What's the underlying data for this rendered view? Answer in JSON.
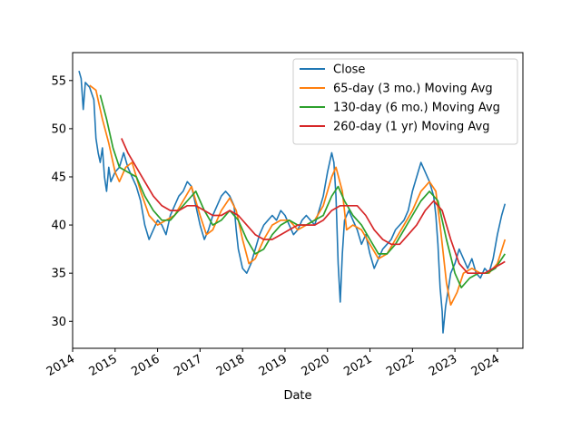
{
  "chart_data": {
    "type": "line",
    "title": "",
    "xlabel": "Date",
    "ylabel": "",
    "xlim": [
      2014.0,
      2024.6
    ],
    "ylim": [
      27.2,
      57.9
    ],
    "x_ticks": [
      2014,
      2015,
      2016,
      2017,
      2018,
      2019,
      2020,
      2021,
      2022,
      2023,
      2024
    ],
    "x_tick_labels": [
      "2014",
      "2015",
      "2016",
      "2017",
      "2018",
      "2019",
      "2020",
      "2021",
      "2022",
      "2023",
      "2024"
    ],
    "y_ticks": [
      30,
      35,
      40,
      45,
      50,
      55
    ],
    "y_tick_labels": [
      "30",
      "35",
      "40",
      "45",
      "50",
      "55"
    ],
    "grid": false,
    "legend_position": "upper-right",
    "series": [
      {
        "name": "Close",
        "color": "#1f77b4",
        "points": [
          [
            2014.15,
            56.0
          ],
          [
            2014.2,
            55.2
          ],
          [
            2014.25,
            52.0
          ],
          [
            2014.3,
            54.8
          ],
          [
            2014.4,
            54.3
          ],
          [
            2014.5,
            53.0
          ],
          [
            2014.55,
            49.0
          ],
          [
            2014.6,
            47.5
          ],
          [
            2014.65,
            46.5
          ],
          [
            2014.7,
            48.0
          ],
          [
            2014.75,
            45.0
          ],
          [
            2014.8,
            43.5
          ],
          [
            2014.85,
            46.0
          ],
          [
            2014.9,
            44.5
          ],
          [
            2015.0,
            45.5
          ],
          [
            2015.1,
            46.0
          ],
          [
            2015.2,
            47.5
          ],
          [
            2015.3,
            46.0
          ],
          [
            2015.4,
            45.0
          ],
          [
            2015.5,
            44.0
          ],
          [
            2015.6,
            42.5
          ],
          [
            2015.7,
            40.0
          ],
          [
            2015.8,
            38.5
          ],
          [
            2015.9,
            39.5
          ],
          [
            2016.0,
            40.5
          ],
          [
            2016.1,
            40.0
          ],
          [
            2016.2,
            39.0
          ],
          [
            2016.3,
            41.0
          ],
          [
            2016.4,
            42.0
          ],
          [
            2016.5,
            43.0
          ],
          [
            2016.6,
            43.5
          ],
          [
            2016.7,
            44.5
          ],
          [
            2016.8,
            44.0
          ],
          [
            2016.9,
            42.0
          ],
          [
            2017.0,
            40.0
          ],
          [
            2017.1,
            38.5
          ],
          [
            2017.2,
            39.5
          ],
          [
            2017.3,
            41.0
          ],
          [
            2017.4,
            42.0
          ],
          [
            2017.5,
            43.0
          ],
          [
            2017.6,
            43.5
          ],
          [
            2017.7,
            43.0
          ],
          [
            2017.8,
            42.0
          ],
          [
            2017.85,
            39.5
          ],
          [
            2017.9,
            37.5
          ],
          [
            2018.0,
            35.5
          ],
          [
            2018.1,
            35.0
          ],
          [
            2018.2,
            36.0
          ],
          [
            2018.3,
            37.5
          ],
          [
            2018.4,
            39.0
          ],
          [
            2018.5,
            40.0
          ],
          [
            2018.6,
            40.5
          ],
          [
            2018.7,
            41.0
          ],
          [
            2018.8,
            40.5
          ],
          [
            2018.9,
            41.5
          ],
          [
            2019.0,
            41.0
          ],
          [
            2019.1,
            40.0
          ],
          [
            2019.2,
            39.0
          ],
          [
            2019.3,
            39.5
          ],
          [
            2019.4,
            40.5
          ],
          [
            2019.5,
            41.0
          ],
          [
            2019.6,
            40.5
          ],
          [
            2019.7,
            40.0
          ],
          [
            2019.8,
            41.5
          ],
          [
            2019.9,
            43.0
          ],
          [
            2020.0,
            45.5
          ],
          [
            2020.1,
            47.5
          ],
          [
            2020.15,
            46.5
          ],
          [
            2020.2,
            43.0
          ],
          [
            2020.25,
            36.0
          ],
          [
            2020.3,
            32.0
          ],
          [
            2020.35,
            37.0
          ],
          [
            2020.4,
            40.5
          ],
          [
            2020.5,
            41.5
          ],
          [
            2020.6,
            40.5
          ],
          [
            2020.7,
            39.5
          ],
          [
            2020.8,
            38.0
          ],
          [
            2020.9,
            39.0
          ],
          [
            2021.0,
            37.0
          ],
          [
            2021.1,
            35.5
          ],
          [
            2021.2,
            36.5
          ],
          [
            2021.3,
            37.5
          ],
          [
            2021.4,
            38.0
          ],
          [
            2021.5,
            38.5
          ],
          [
            2021.6,
            39.5
          ],
          [
            2021.7,
            40.0
          ],
          [
            2021.8,
            40.5
          ],
          [
            2021.9,
            41.5
          ],
          [
            2022.0,
            43.5
          ],
          [
            2022.1,
            45.0
          ],
          [
            2022.2,
            46.5
          ],
          [
            2022.3,
            45.5
          ],
          [
            2022.4,
            44.5
          ],
          [
            2022.5,
            43.0
          ],
          [
            2022.55,
            41.0
          ],
          [
            2022.6,
            38.0
          ],
          [
            2022.65,
            33.5
          ],
          [
            2022.7,
            31.0
          ],
          [
            2022.72,
            28.8
          ],
          [
            2022.78,
            31.5
          ],
          [
            2022.85,
            33.5
          ],
          [
            2022.9,
            35.0
          ],
          [
            2023.0,
            36.0
          ],
          [
            2023.1,
            37.5
          ],
          [
            2023.2,
            36.5
          ],
          [
            2023.3,
            35.5
          ],
          [
            2023.4,
            36.5
          ],
          [
            2023.5,
            35.0
          ],
          [
            2023.6,
            34.5
          ],
          [
            2023.7,
            35.5
          ],
          [
            2023.8,
            35.0
          ],
          [
            2023.9,
            36.5
          ],
          [
            2024.0,
            39.0
          ],
          [
            2024.1,
            41.0
          ],
          [
            2024.18,
            42.2
          ]
        ]
      },
      {
        "name": "65-day (3 mo.) Moving Avg",
        "color": "#ff7f0e",
        "points": [
          [
            2014.4,
            54.5
          ],
          [
            2014.55,
            54.0
          ],
          [
            2014.7,
            51.0
          ],
          [
            2014.85,
            48.5
          ],
          [
            2015.0,
            45.5
          ],
          [
            2015.1,
            44.5
          ],
          [
            2015.25,
            46.0
          ],
          [
            2015.4,
            46.5
          ],
          [
            2015.6,
            43.5
          ],
          [
            2015.8,
            41.0
          ],
          [
            2016.0,
            40.0
          ],
          [
            2016.2,
            40.5
          ],
          [
            2016.4,
            41.0
          ],
          [
            2016.6,
            42.5
          ],
          [
            2016.8,
            44.0
          ],
          [
            2017.0,
            41.0
          ],
          [
            2017.15,
            39.0
          ],
          [
            2017.3,
            39.5
          ],
          [
            2017.5,
            41.5
          ],
          [
            2017.7,
            42.8
          ],
          [
            2017.85,
            41.5
          ],
          [
            2018.0,
            38.5
          ],
          [
            2018.15,
            36.0
          ],
          [
            2018.3,
            36.5
          ],
          [
            2018.5,
            38.5
          ],
          [
            2018.7,
            40.0
          ],
          [
            2018.9,
            40.5
          ],
          [
            2019.1,
            40.5
          ],
          [
            2019.3,
            39.5
          ],
          [
            2019.5,
            40.0
          ],
          [
            2019.7,
            40.5
          ],
          [
            2019.9,
            42.0
          ],
          [
            2020.1,
            45.0
          ],
          [
            2020.2,
            46.0
          ],
          [
            2020.35,
            43.5
          ],
          [
            2020.45,
            39.5
          ],
          [
            2020.6,
            40.0
          ],
          [
            2020.8,
            39.5
          ],
          [
            2021.0,
            38.0
          ],
          [
            2021.2,
            36.5
          ],
          [
            2021.4,
            37.0
          ],
          [
            2021.6,
            38.5
          ],
          [
            2021.8,
            40.0
          ],
          [
            2022.0,
            41.5
          ],
          [
            2022.2,
            43.5
          ],
          [
            2022.4,
            44.5
          ],
          [
            2022.55,
            43.5
          ],
          [
            2022.65,
            40.0
          ],
          [
            2022.8,
            34.0
          ],
          [
            2022.9,
            31.7
          ],
          [
            2023.05,
            33.0
          ],
          [
            2023.2,
            35.0
          ],
          [
            2023.4,
            35.5
          ],
          [
            2023.6,
            35.0
          ],
          [
            2023.8,
            35.0
          ],
          [
            2024.0,
            36.0
          ],
          [
            2024.18,
            38.5
          ]
        ]
      },
      {
        "name": "130-day (6 mo.) Moving Avg",
        "color": "#2ca02c",
        "points": [
          [
            2014.65,
            53.5
          ],
          [
            2014.8,
            51.0
          ],
          [
            2014.95,
            48.0
          ],
          [
            2015.1,
            46.0
          ],
          [
            2015.3,
            45.5
          ],
          [
            2015.5,
            45.0
          ],
          [
            2015.7,
            43.0
          ],
          [
            2015.9,
            41.5
          ],
          [
            2016.1,
            40.5
          ],
          [
            2016.3,
            40.5
          ],
          [
            2016.5,
            41.5
          ],
          [
            2016.7,
            42.5
          ],
          [
            2016.9,
            43.5
          ],
          [
            2017.1,
            41.5
          ],
          [
            2017.3,
            40.0
          ],
          [
            2017.5,
            40.5
          ],
          [
            2017.7,
            41.5
          ],
          [
            2017.9,
            40.5
          ],
          [
            2018.1,
            38.5
          ],
          [
            2018.3,
            37.0
          ],
          [
            2018.5,
            37.5
          ],
          [
            2018.7,
            39.0
          ],
          [
            2018.9,
            40.0
          ],
          [
            2019.1,
            40.5
          ],
          [
            2019.3,
            40.0
          ],
          [
            2019.5,
            40.0
          ],
          [
            2019.7,
            40.5
          ],
          [
            2019.9,
            41.0
          ],
          [
            2020.1,
            43.0
          ],
          [
            2020.25,
            44.0
          ],
          [
            2020.4,
            42.5
          ],
          [
            2020.6,
            41.0
          ],
          [
            2020.8,
            40.0
          ],
          [
            2021.0,
            38.5
          ],
          [
            2021.2,
            37.0
          ],
          [
            2021.4,
            37.0
          ],
          [
            2021.6,
            38.0
          ],
          [
            2021.8,
            39.5
          ],
          [
            2022.0,
            41.0
          ],
          [
            2022.2,
            42.5
          ],
          [
            2022.4,
            43.5
          ],
          [
            2022.6,
            42.5
          ],
          [
            2022.8,
            38.5
          ],
          [
            2023.0,
            35.0
          ],
          [
            2023.15,
            33.5
          ],
          [
            2023.35,
            34.5
          ],
          [
            2023.55,
            35.0
          ],
          [
            2023.75,
            35.0
          ],
          [
            2023.95,
            35.5
          ],
          [
            2024.18,
            37.0
          ]
        ]
      },
      {
        "name": "260-day (1 yr) Moving Avg",
        "color": "#d62728",
        "points": [
          [
            2015.15,
            49.0
          ],
          [
            2015.3,
            47.5
          ],
          [
            2015.5,
            46.0
          ],
          [
            2015.7,
            44.5
          ],
          [
            2015.9,
            43.0
          ],
          [
            2016.1,
            42.0
          ],
          [
            2016.3,
            41.5
          ],
          [
            2016.5,
            41.5
          ],
          [
            2016.7,
            42.0
          ],
          [
            2016.9,
            42.0
          ],
          [
            2017.1,
            41.5
          ],
          [
            2017.3,
            41.0
          ],
          [
            2017.5,
            41.0
          ],
          [
            2017.7,
            41.5
          ],
          [
            2017.9,
            41.0
          ],
          [
            2018.1,
            40.0
          ],
          [
            2018.3,
            39.0
          ],
          [
            2018.5,
            38.5
          ],
          [
            2018.7,
            38.5
          ],
          [
            2018.9,
            39.0
          ],
          [
            2019.1,
            39.5
          ],
          [
            2019.3,
            40.0
          ],
          [
            2019.5,
            40.0
          ],
          [
            2019.7,
            40.0
          ],
          [
            2019.9,
            40.5
          ],
          [
            2020.1,
            41.5
          ],
          [
            2020.3,
            42.0
          ],
          [
            2020.5,
            42.0
          ],
          [
            2020.7,
            42.0
          ],
          [
            2020.9,
            41.0
          ],
          [
            2021.1,
            39.5
          ],
          [
            2021.3,
            38.5
          ],
          [
            2021.5,
            38.0
          ],
          [
            2021.7,
            38.0
          ],
          [
            2021.9,
            39.0
          ],
          [
            2022.1,
            40.0
          ],
          [
            2022.3,
            41.5
          ],
          [
            2022.5,
            42.5
          ],
          [
            2022.7,
            41.5
          ],
          [
            2022.9,
            38.5
          ],
          [
            2023.1,
            36.0
          ],
          [
            2023.3,
            35.0
          ],
          [
            2023.5,
            35.0
          ],
          [
            2023.7,
            35.0
          ],
          [
            2023.9,
            35.5
          ],
          [
            2024.1,
            36.0
          ],
          [
            2024.18,
            36.2
          ]
        ]
      }
    ]
  }
}
